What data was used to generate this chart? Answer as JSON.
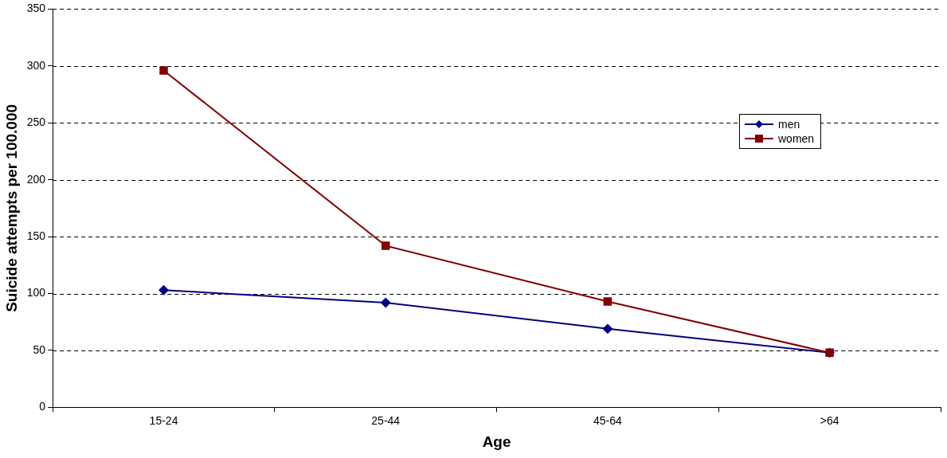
{
  "chart_data": {
    "type": "line",
    "xlabel": "Age",
    "ylabel": "Suicide attempts per 100.000",
    "categories": [
      "15-24",
      "25-44",
      "45-64",
      ">64"
    ],
    "series": [
      {
        "name": "men",
        "color": "#000080",
        "marker": "diamond",
        "values": [
          103,
          92,
          69,
          48
        ]
      },
      {
        "name": "women",
        "color": "#800000",
        "marker": "square",
        "values": [
          296,
          142,
          93,
          48
        ]
      }
    ],
    "ylim": [
      0,
      350
    ],
    "yticks": [
      0,
      50,
      100,
      150,
      200,
      250,
      300,
      350
    ],
    "grid": "y",
    "legend": "top right",
    "line_style": "solid"
  }
}
